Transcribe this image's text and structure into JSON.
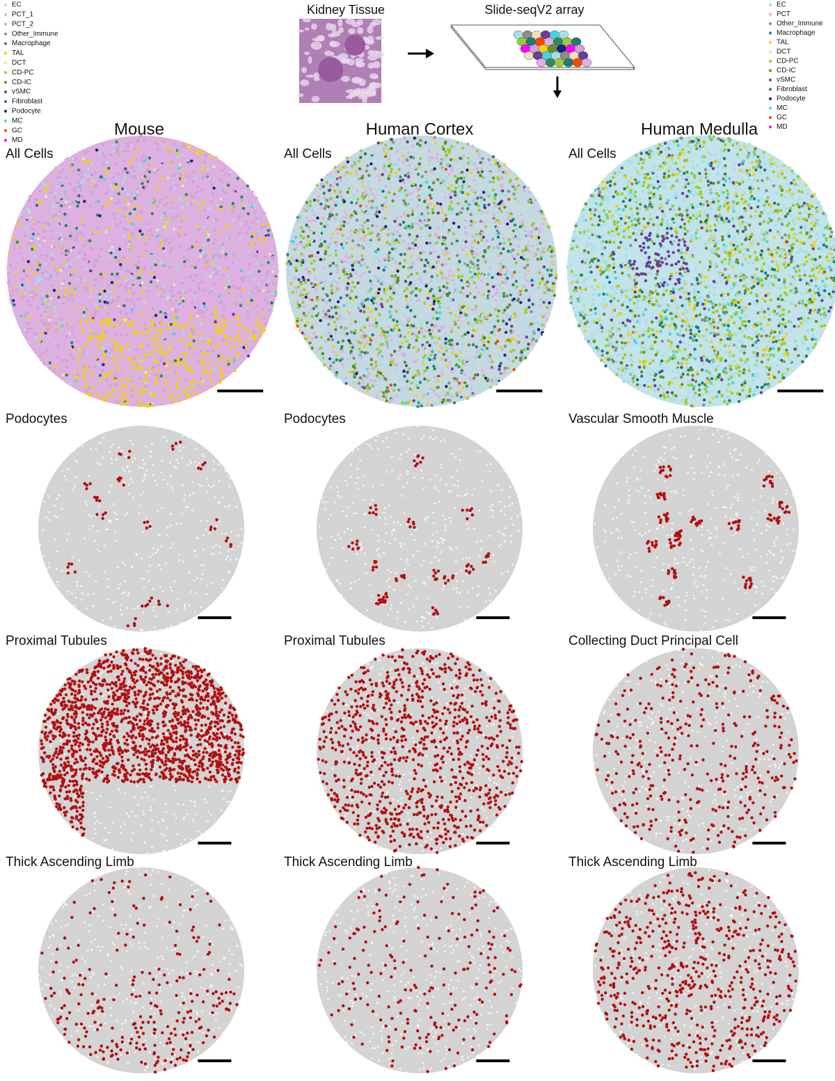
{
  "legend_left": {
    "items": [
      {
        "name": "EC",
        "color": "#a8dcea"
      },
      {
        "name": "PCT_1",
        "color": "#e2aee6"
      },
      {
        "name": "PCT_2",
        "color": "#cfa3d6"
      },
      {
        "name": "Other_Immune",
        "color": "#8c8c8c"
      },
      {
        "name": "Macrophage",
        "color": "#2e8b57"
      },
      {
        "name": "TAL",
        "color": "#f2d10f"
      },
      {
        "name": "DCT",
        "color": "#f3dfb8"
      },
      {
        "name": "CD-PC",
        "color": "#9acd32"
      },
      {
        "name": "CD-IC",
        "color": "#6b8e23"
      },
      {
        "name": "vSMC",
        "color": "#6a3d9a"
      },
      {
        "name": "Fibroblast",
        "color": "#1f7a7a"
      },
      {
        "name": "Podocyte",
        "color": "#1a237e"
      },
      {
        "name": "MC",
        "color": "#3fd8e0"
      },
      {
        "name": "GC",
        "color": "#ff4500"
      },
      {
        "name": "MD",
        "color": "#ff00ff"
      }
    ]
  },
  "legend_right": {
    "items": [
      {
        "name": "EC",
        "color": "#a8dcea"
      },
      {
        "name": "PCT",
        "color": "#e2aee6"
      },
      {
        "name": "Other_Immune",
        "color": "#8c8c8c"
      },
      {
        "name": "Macrophage",
        "color": "#2e8b57"
      },
      {
        "name": "TAL",
        "color": "#f2d10f"
      },
      {
        "name": "DCT",
        "color": "#f3dfb8"
      },
      {
        "name": "CD-PC",
        "color": "#9acd32"
      },
      {
        "name": "CD-IC",
        "color": "#6b8e23"
      },
      {
        "name": "vSMC",
        "color": "#6a3d9a"
      },
      {
        "name": "Fibroblast",
        "color": "#1f7a7a"
      },
      {
        "name": "Podocyte",
        "color": "#1a237e"
      },
      {
        "name": "MC",
        "color": "#3fd8e0"
      },
      {
        "name": "GC",
        "color": "#ff4500"
      },
      {
        "name": "MD",
        "color": "#ff00ff"
      }
    ]
  },
  "schematic": {
    "tissue_label": "Kidney Tissue",
    "array_label": "Slide-seqV2 array"
  },
  "columns": [
    "Mouse",
    "Human Cortex",
    "Human Medulla"
  ],
  "rows": [
    [
      "All Cells",
      "All Cells",
      "All Cells"
    ],
    [
      "Podocytes",
      "Podocytes",
      "Vascular Smooth Muscle"
    ],
    [
      "Proximal Tubules",
      "Proximal Tubules",
      "Collecting Duct Principal Cell"
    ],
    [
      "Thick Ascending Limb",
      "Thick Ascending Limb",
      "Thick Ascending Limb"
    ]
  ]
}
